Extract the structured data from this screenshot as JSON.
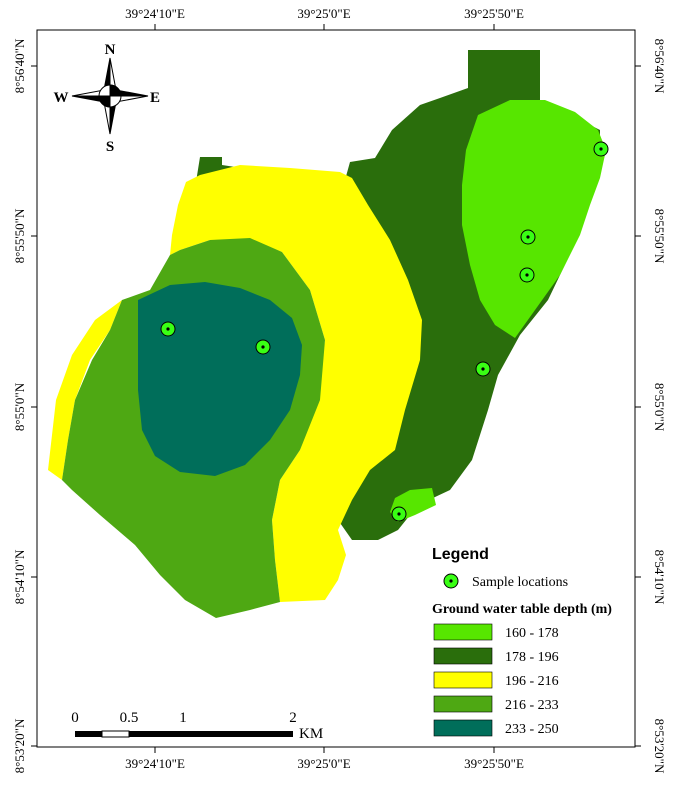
{
  "map": {
    "top_axis_labels": [
      "39°24'10\"E",
      "39°25'0\"E",
      "39°25'50\"E"
    ],
    "bottom_axis_labels": [
      "39°24'10\"E",
      "39°25'0\"E",
      "39°25'50\"E"
    ],
    "left_axis_labels": [
      "8°56'40\"N",
      "8°55'50\"N",
      "8°55'0\"N",
      "8°54'10\"N",
      "8°53'20\"N"
    ],
    "right_axis_labels": [
      "8°56'40\"N",
      "8°55'50\"N",
      "8°55'0\"N",
      "8°54'10\"N",
      "8°53'20\"N"
    ],
    "sample_point_count": 7
  },
  "north_arrow": {
    "n": "N",
    "s": "S",
    "e": "E",
    "w": "W"
  },
  "scale_bar": {
    "ticks": [
      "0",
      "0.5",
      "1",
      "2"
    ],
    "unit": "KM"
  },
  "legend": {
    "title": "Legend",
    "sample_label": "Sample locations",
    "depth_title": "Ground water table depth (m)",
    "classes": [
      {
        "label": "160 - 178",
        "color": "#57e600"
      },
      {
        "label": "178 - 196",
        "color": "#2a6e0c"
      },
      {
        "label": "196 - 216",
        "color": "#ffff00"
      },
      {
        "label": "216 - 233",
        "color": "#4ea813"
      },
      {
        "label": "233 - 250",
        "color": "#006e5a"
      }
    ]
  },
  "colors": {
    "sample_ring": "#39ff14",
    "frame": "#000000"
  }
}
